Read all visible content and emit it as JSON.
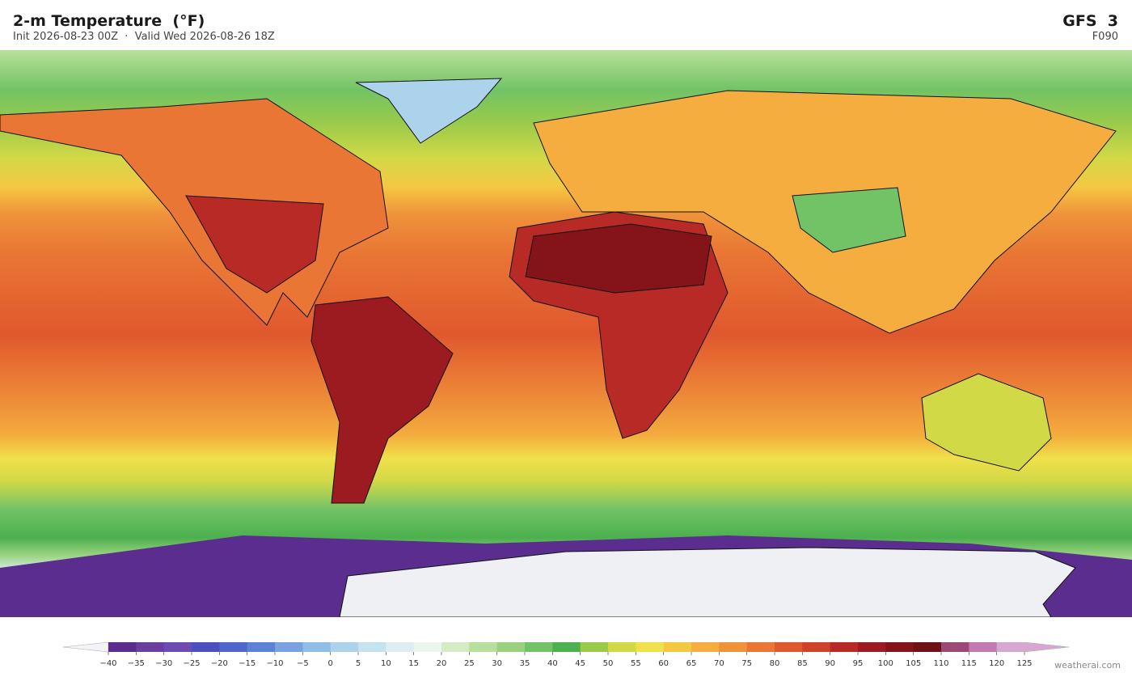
{
  "header": {
    "title": "2-m Temperature  (°F)",
    "subtitle": "Init 2026-08-23 00Z  ·  Valid Wed 2026-08-26 18Z",
    "model": "GFS  3",
    "forecast_hour": "F090"
  },
  "chart_data": {
    "type": "colorbar",
    "xlim": [
      -40,
      125
    ],
    "xticks": [
      {
        "value": -40,
        "label": "−40"
      },
      {
        "value": -35,
        "label": "−35"
      },
      {
        "value": -30,
        "label": "−30"
      },
      {
        "value": -25,
        "label": "−25"
      },
      {
        "value": -20,
        "label": "−20"
      },
      {
        "value": -15,
        "label": "−15"
      },
      {
        "value": -10,
        "label": "−10"
      },
      {
        "value": -5,
        "label": "−5"
      },
      0,
      5,
      10,
      15,
      20,
      25,
      30,
      35,
      40,
      45,
      50,
      55,
      60,
      65,
      70,
      75,
      80,
      85,
      90,
      95,
      100,
      105,
      110,
      115,
      120,
      125
    ],
    "colors": [
      "#5b2d8e",
      "#6a3fa0",
      "#6e4bb0",
      "#4b4fbf",
      "#4f66cc",
      "#5b82d6",
      "#7aa2de",
      "#90bde6",
      "#acd2ec",
      "#c4e2f0",
      "#ddeef2",
      "#eaf5ee",
      "#d4ecc4",
      "#b8e09c",
      "#98d27e",
      "#72c365",
      "#4cb04e",
      "#9acb4a",
      "#d2d947",
      "#f0e04a",
      "#f5c843",
      "#f4ad3e",
      "#ef923a",
      "#e97634",
      "#e0582e",
      "#d0412a",
      "#b72a25",
      "#9b1b20",
      "#841419",
      "#6e1216",
      "#9b4a78",
      "#c07ab0",
      "#d9a6d2"
    ]
  },
  "footer": {
    "credit": "weatherai.com"
  }
}
